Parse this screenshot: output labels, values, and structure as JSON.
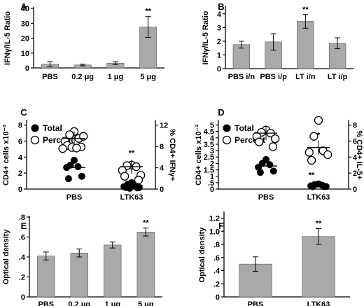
{
  "chart_data": [
    {
      "panel": "A",
      "type": "bar",
      "ylabel": "IFNγ/IL-5 Ratio",
      "categories": [
        "PBS",
        "0.2 μg",
        "1 μg",
        "5 μg"
      ],
      "values": [
        2.5,
        2.0,
        3.2,
        27.5
      ],
      "errors": [
        1.7,
        0.6,
        1.0,
        7.0
      ],
      "ylim": [
        0,
        40
      ],
      "yticks": [
        0,
        10,
        20,
        30,
        40
      ],
      "annotations": [
        {
          "category": "5 μg",
          "text": "**"
        }
      ]
    },
    {
      "panel": "B",
      "type": "bar",
      "ylabel": "IFNγ/IL-5 Ratio",
      "categories": [
        "PBS i/n",
        "PBS i/p",
        "LT i/n",
        "LT i/p"
      ],
      "values": [
        1.75,
        1.95,
        3.45,
        1.85
      ],
      "errors": [
        0.25,
        0.6,
        0.5,
        0.4
      ],
      "ylim": [
        0,
        4.5
      ],
      "yticks": [
        0,
        1,
        2,
        3,
        4
      ],
      "annotations": [
        {
          "category": "LT i/n",
          "text": "**"
        }
      ]
    },
    {
      "panel": "C",
      "type": "scatter",
      "ylabel": "CD4+ cells x10⁻³",
      "y2label": "% CD4+ IFNγ+",
      "legend": [
        "Total",
        "Percent"
      ],
      "categories": [
        "PBS",
        "LTK63"
      ],
      "ylim": [
        0,
        8.5
      ],
      "yticks": [
        0,
        2,
        4,
        6,
        8
      ],
      "y2lim": [
        0,
        12.75
      ],
      "y2ticks": [
        0,
        4,
        8,
        12
      ],
      "total": {
        "PBS": [
          3.6,
          3.0,
          2.8,
          2.7,
          1.6,
          1.3
        ],
        "PBS_mean": 2.7,
        "LTK63": [
          0.8,
          0.6,
          0.4,
          0.3,
          0.2,
          0.2,
          0.15,
          0.1
        ],
        "LTK63_mean": 0.4
      },
      "percent": {
        "PBS": [
          10.8,
          10.2,
          9.5,
          9.0,
          9.9,
          8.2,
          7.9,
          7.8,
          7.7,
          7.6
        ],
        "PBS_mean": 9.5,
        "LTK63": [
          4.5,
          4.4,
          4.2,
          3.5,
          2.6,
          2.4,
          1.7
        ],
        "LTK63_mean": 4.2
      },
      "annotations": [
        {
          "category": "LTK63",
          "text": "**"
        }
      ]
    },
    {
      "panel": "D",
      "type": "scatter",
      "ylabel": "CD4+ cells x10⁻³",
      "y2label": "% CD4+ IL-5+",
      "legend": [
        "Total",
        "Percent"
      ],
      "categories": [
        "PBS",
        "LTK63"
      ],
      "ylim": [
        0,
        5.3
      ],
      "yticks": [
        0,
        0.5,
        1,
        1.5,
        2,
        2.5,
        3,
        3.5,
        4,
        4.5,
        5
      ],
      "ytick_labels": [
        "0",
        ".5",
        "1",
        "1.5",
        "2",
        "2.5",
        "3",
        "3.5",
        "4",
        "4.5",
        "5"
      ],
      "y2lim": [
        0,
        8.5
      ],
      "y2ticks": [
        0,
        2,
        4,
        6,
        8
      ],
      "total": {
        "PBS": [
          2.3,
          2.0,
          1.9,
          1.7,
          1.4,
          1.3
        ],
        "PBS_mean": 1.8,
        "LTK63": [
          0.4,
          0.35,
          0.3,
          0.25,
          0.2,
          0.2,
          0.2
        ],
        "LTK63_mean": 0.25
      },
      "percent": {
        "PBS": [
          7.4,
          7.1,
          7.0,
          6.6,
          6.3,
          5.9,
          5.3
        ],
        "PBS_mean": 7.0,
        "LTK63": [
          8.6,
          6.6,
          4.8,
          4.6,
          4.3,
          3.6
        ],
        "LTK63_mean": 5.2
      },
      "annotations": [
        {
          "category": "LTK63",
          "text": "**"
        },
        {
          "category": "LTK63",
          "text": "*"
        }
      ]
    },
    {
      "panel": "E",
      "type": "bar",
      "ylabel": "Optical density",
      "categories": [
        "PBS",
        "0.2 μg",
        "1 μg",
        "5 μg"
      ],
      "values": [
        0.41,
        0.44,
        0.52,
        0.65
      ],
      "errors": [
        0.04,
        0.04,
        0.03,
        0.04
      ],
      "ylim": [
        0,
        0.8
      ],
      "yticks": [
        0,
        0.2,
        0.4,
        0.6,
        0.8
      ],
      "ytick_labels": [
        "0",
        ".2",
        ".4",
        ".6",
        ".8"
      ],
      "annotations": [
        {
          "category": "5 μg",
          "text": "**"
        }
      ]
    },
    {
      "panel": "F",
      "type": "bar",
      "ylabel": "Optical density",
      "categories": [
        "PBS",
        "LTK63"
      ],
      "values": [
        0.5,
        0.92
      ],
      "errors": [
        0.11,
        0.12
      ],
      "ylim": [
        0,
        1.28
      ],
      "yticks": [
        0,
        0.2,
        0.4,
        0.6,
        0.8,
        1.0,
        1.2
      ],
      "ytick_labels": [
        "0",
        ".2",
        ".4",
        ".6",
        ".8",
        "1.0",
        "1.2"
      ],
      "annotations": [
        {
          "category": "LTK63",
          "text": "**"
        }
      ]
    }
  ],
  "colors": {
    "bar": "#a9a9a9",
    "axis": "#000000"
  }
}
